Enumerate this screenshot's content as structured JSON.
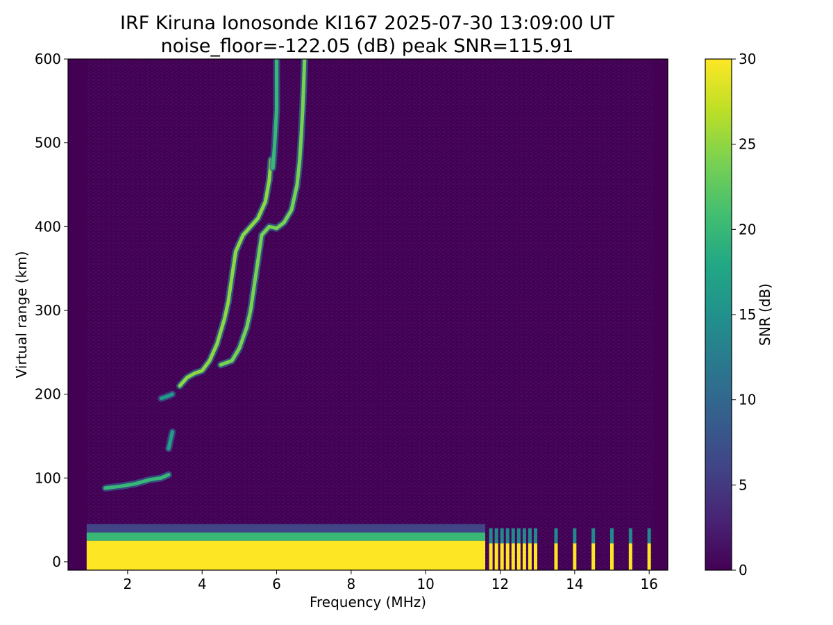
{
  "chart_data": {
    "type": "heatmap",
    "title": "IRF Kiruna Ionosonde KI167 2025-07-30 13:09:00  UT",
    "subtitle": "noise_floor=-122.05 (dB) peak SNR=115.91",
    "xlabel": "Frequency (MHz)",
    "ylabel": "Virtual range (km)",
    "colorbar_label": "SNR (dB)",
    "colormap": "viridis",
    "xlim": [
      0.4,
      16.5
    ],
    "ylim": [
      -10,
      600
    ],
    "clim": [
      0,
      30
    ],
    "x_ticks": [
      2,
      4,
      6,
      8,
      10,
      12,
      14,
      16
    ],
    "y_ticks": [
      0,
      100,
      200,
      300,
      400,
      500,
      600
    ],
    "colorbar_ticks": [
      0,
      5,
      10,
      15,
      20,
      25,
      30
    ],
    "data_freq_range": [
      0.9,
      16.1
    ],
    "ground_echo": {
      "snr": 30,
      "continuous_until_mhz": 11.6,
      "discrete_channels_mhz": [
        11.75,
        11.9,
        12.05,
        12.2,
        12.35,
        12.5,
        12.65,
        12.8,
        12.95,
        13.5,
        14.0,
        14.5,
        15.0,
        15.5,
        16.0
      ]
    },
    "traces": [
      {
        "points": [
          [
            1.4,
            88
          ],
          [
            1.8,
            90
          ],
          [
            2.2,
            93
          ],
          [
            2.6,
            98
          ],
          [
            2.9,
            100
          ],
          [
            3.1,
            104
          ]
        ],
        "snr": 20
      },
      {
        "points": [
          [
            3.1,
            135
          ],
          [
            3.15,
            145
          ],
          [
            3.2,
            155
          ]
        ],
        "snr": 17
      },
      {
        "points": [
          [
            2.9,
            195
          ],
          [
            3.1,
            198
          ],
          [
            3.2,
            200
          ]
        ],
        "snr": 16
      },
      {
        "points": [
          [
            3.4,
            210
          ],
          [
            3.6,
            220
          ],
          [
            3.8,
            225
          ],
          [
            4.0,
            228
          ],
          [
            4.2,
            240
          ],
          [
            4.4,
            260
          ],
          [
            4.6,
            290
          ],
          [
            4.7,
            310
          ],
          [
            4.8,
            340
          ],
          [
            4.9,
            370
          ],
          [
            5.1,
            390
          ],
          [
            5.3,
            400
          ],
          [
            5.5,
            410
          ],
          [
            5.7,
            430
          ],
          [
            5.8,
            455
          ],
          [
            5.85,
            480
          ]
        ],
        "snr": 25
      },
      {
        "points": [
          [
            5.9,
            470
          ],
          [
            5.95,
            500
          ],
          [
            6.0,
            540
          ],
          [
            6.0,
            600
          ]
        ],
        "snr": 20
      },
      {
        "points": [
          [
            4.5,
            235
          ],
          [
            4.8,
            240
          ],
          [
            5.0,
            255
          ],
          [
            5.2,
            280
          ],
          [
            5.3,
            300
          ],
          [
            5.4,
            330
          ],
          [
            5.5,
            360
          ],
          [
            5.6,
            390
          ],
          [
            5.8,
            400
          ],
          [
            6.0,
            398
          ],
          [
            6.2,
            405
          ],
          [
            6.4,
            420
          ],
          [
            6.55,
            450
          ],
          [
            6.62,
            480
          ],
          [
            6.65,
            500
          ],
          [
            6.7,
            540
          ],
          [
            6.75,
            600
          ]
        ],
        "snr": 24
      }
    ]
  }
}
